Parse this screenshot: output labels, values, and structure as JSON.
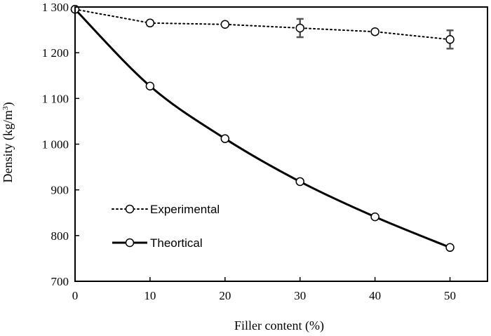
{
  "chart_data": {
    "type": "line",
    "title": "",
    "xlabel": "Filler content (%)",
    "ylabel_main": "Density (kg/m",
    "ylabel_sup": "3",
    "ylabel_close": ")",
    "xlim": [
      0,
      55
    ],
    "ylim": [
      700,
      1300
    ],
    "x_ticks": [
      0,
      10,
      20,
      30,
      40,
      50
    ],
    "x_tick_labels": [
      "0",
      "10",
      "20",
      "30",
      "40",
      "50"
    ],
    "y_ticks": [
      700,
      800,
      900,
      1000,
      1100,
      1200,
      1300
    ],
    "y_tick_labels": [
      "700",
      "800",
      "900",
      "1 000",
      "1 100",
      "1 200",
      "1 300"
    ],
    "grid": false,
    "legend_position": "lower-left",
    "series": [
      {
        "name": "Experimental",
        "style": "dotted",
        "x": [
          0,
          10,
          20,
          30,
          40,
          50
        ],
        "values": [
          1295,
          1265,
          1262,
          1254,
          1246,
          1229
        ],
        "errors": [
          0,
          5,
          0,
          20,
          0,
          20
        ]
      },
      {
        "name": "Theortical",
        "style": "solid",
        "x": [
          0,
          10,
          20,
          30,
          40,
          50
        ],
        "values": [
          1295,
          1127,
          1012,
          918,
          841,
          774
        ]
      }
    ]
  }
}
